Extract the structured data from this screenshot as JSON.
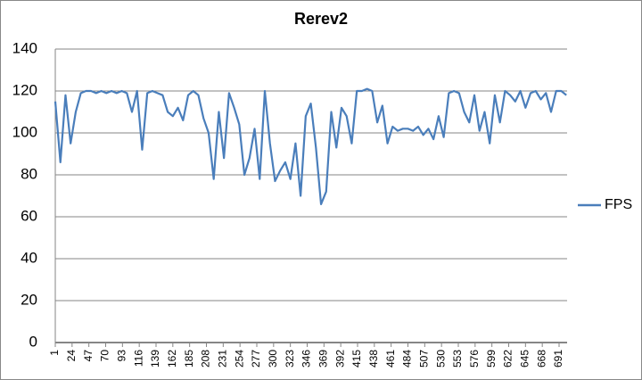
{
  "chart_data": {
    "type": "line",
    "title": "Rerev2",
    "x": [
      1,
      8,
      15,
      22,
      29,
      36,
      43,
      50,
      57,
      64,
      71,
      78,
      85,
      92,
      99,
      106,
      113,
      120,
      127,
      134,
      141,
      148,
      155,
      162,
      169,
      176,
      183,
      190,
      197,
      204,
      211,
      218,
      225,
      232,
      239,
      246,
      253,
      260,
      267,
      274,
      281,
      288,
      295,
      302,
      309,
      316,
      323,
      330,
      337,
      344,
      351,
      358,
      365,
      372,
      379,
      386,
      393,
      400,
      407,
      414,
      421,
      428,
      435,
      442,
      449,
      456,
      463,
      470,
      477,
      484,
      491,
      498,
      505,
      512,
      519,
      526,
      533,
      540,
      547,
      554,
      561,
      568,
      575,
      582,
      589,
      596,
      603,
      610,
      617,
      624,
      631,
      638,
      645,
      652,
      659,
      666,
      673,
      680,
      687,
      694,
      701
    ],
    "series": [
      {
        "name": "FPS",
        "color": "#4a7ebb",
        "values": [
          115,
          86,
          118,
          95,
          110,
          119,
          120,
          120,
          119,
          120,
          119,
          120,
          119,
          120,
          119,
          110,
          120,
          92,
          119,
          120,
          119,
          118,
          110,
          108,
          112,
          106,
          118,
          120,
          118,
          107,
          100,
          78,
          110,
          88,
          119,
          112,
          104,
          80,
          88,
          102,
          78,
          120,
          95,
          77,
          82,
          86,
          78,
          95,
          70,
          108,
          114,
          93,
          66,
          72,
          110,
          93,
          112,
          108,
          95,
          120,
          120,
          121,
          120,
          105,
          113,
          95,
          103,
          101,
          102,
          102,
          101,
          103,
          99,
          102,
          97,
          108,
          98,
          119,
          120,
          119,
          110,
          105,
          118,
          101,
          110,
          95,
          118,
          105,
          120,
          118,
          115,
          120,
          112,
          119,
          120,
          116,
          119,
          110,
          120,
          120,
          118
        ]
      }
    ],
    "xlim": [
      1,
      702
    ],
    "xticks": [
      1,
      24,
      47,
      70,
      93,
      116,
      139,
      162,
      185,
      208,
      231,
      254,
      277,
      300,
      323,
      346,
      369,
      392,
      415,
      438,
      461,
      484,
      507,
      530,
      553,
      576,
      599,
      622,
      645,
      668,
      691
    ],
    "ylim": [
      0,
      140
    ],
    "yticks": [
      0,
      20,
      40,
      60,
      80,
      100,
      120,
      140
    ],
    "grid": true,
    "legend": "right"
  }
}
